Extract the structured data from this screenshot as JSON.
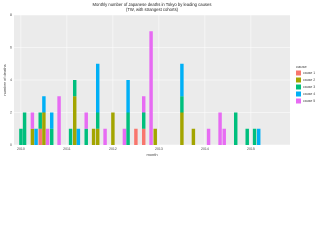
{
  "chart_data": {
    "type": "bar",
    "stacked": true,
    "title": "Monthly number of Japanese deaths in Tokyo by leading causes",
    "subtitle": "(TW, with strangest cohorts)",
    "x_label": "month",
    "y_label": "number of deaths",
    "legend_title": "cause",
    "x": [
      2010.0,
      2010.08,
      2010.25,
      2010.33,
      2010.42,
      2010.5,
      2010.58,
      2010.67,
      2010.83,
      2011.08,
      2011.17,
      2011.25,
      2011.42,
      2011.58,
      2011.67,
      2011.83,
      2012.0,
      2012.25,
      2012.33,
      2012.5,
      2012.67,
      2012.83,
      2012.92,
      2013.5,
      2013.75,
      2014.08,
      2014.33,
      2014.42,
      2014.67,
      2014.92,
      2015.08,
      2015.17
    ],
    "xlim": [
      2009.85,
      2015.85
    ],
    "xticks": [
      2010,
      2011,
      2012,
      2013,
      2014,
      2015
    ],
    "ylim": [
      0,
      8
    ],
    "yticks": [
      0,
      2,
      4,
      6,
      8
    ],
    "grid": true,
    "legend": "right",
    "series": [
      {
        "name": "cause 1",
        "color": "#F8766D",
        "values": [
          0,
          0,
          0,
          0,
          1,
          0,
          0,
          0,
          0,
          0,
          0,
          0,
          0,
          0,
          0,
          0,
          0,
          0,
          0,
          1,
          1,
          0,
          0,
          0,
          0,
          0,
          0,
          0,
          0,
          0,
          0,
          0
        ]
      },
      {
        "name": "cause 2",
        "color": "#A3A500",
        "values": [
          0,
          0,
          1,
          0,
          0,
          2,
          0,
          0,
          0,
          0,
          3,
          0,
          0,
          1,
          1,
          0,
          2,
          0,
          0,
          0,
          0,
          0,
          1,
          2,
          1,
          0,
          0,
          0,
          0,
          0,
          0,
          0
        ]
      },
      {
        "name": "cause 3",
        "color": "#00BF7D",
        "values": [
          1,
          2,
          0,
          0,
          1,
          0,
          0,
          1,
          0,
          1,
          1,
          0,
          1,
          0,
          1,
          0,
          0,
          0,
          2,
          0,
          1,
          0,
          0,
          1,
          0,
          0,
          0,
          0,
          2,
          1,
          1,
          0
        ]
      },
      {
        "name": "cause 4",
        "color": "#00B0F6",
        "values": [
          0,
          0,
          0,
          1,
          0,
          1,
          0,
          1,
          0,
          0,
          0,
          1,
          0,
          0,
          3,
          0,
          0,
          0,
          2,
          0,
          0,
          0,
          0,
          2,
          0,
          0,
          0,
          0,
          0,
          0,
          0,
          1
        ]
      },
      {
        "name": "cause 5",
        "color": "#E76BF3",
        "values": [
          0,
          0,
          1,
          0,
          0,
          0,
          1,
          0,
          3,
          0,
          0,
          0,
          1,
          0,
          0,
          1,
          0,
          1,
          0,
          0,
          1,
          7,
          0,
          0,
          0,
          1,
          2,
          1,
          0,
          0,
          0,
          0
        ]
      }
    ]
  }
}
